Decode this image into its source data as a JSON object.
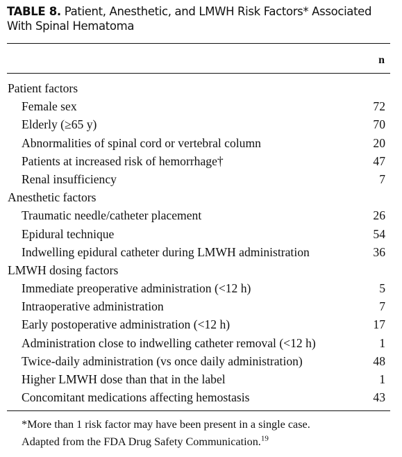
{
  "table": {
    "label": "TABLE 8.",
    "title": "Patient, Anesthetic, and LMWH Risk Factors* Associated With Spinal Hematoma",
    "column_header": "n",
    "rows": [
      {
        "text": "Patient factors",
        "value": "",
        "section": true
      },
      {
        "text": "Female sex",
        "value": "72",
        "section": false
      },
      {
        "text": "Elderly (≥65 y)",
        "value": "70",
        "section": false
      },
      {
        "text": "Abnormalities of spinal cord or vertebral column",
        "value": "20",
        "section": false
      },
      {
        "text": "Patients at increased risk of hemorrhage†",
        "value": "47",
        "section": false
      },
      {
        "text": "Renal insufficiency",
        "value": "7",
        "section": false
      },
      {
        "text": "Anesthetic factors",
        "value": "",
        "section": true
      },
      {
        "text": "Traumatic needle/catheter placement",
        "value": "26",
        "section": false
      },
      {
        "text": "Epidural technique",
        "value": "54",
        "section": false
      },
      {
        "text": "Indwelling epidural catheter during LMWH administration",
        "value": "36",
        "section": false
      },
      {
        "text": "LMWH dosing factors",
        "value": "",
        "section": true
      },
      {
        "text": "Immediate preoperative administration (<12 h)",
        "value": "5",
        "section": false
      },
      {
        "text": "Intraoperative administration",
        "value": "7",
        "section": false
      },
      {
        "text": "Early postoperative administration (<12 h)",
        "value": "17",
        "section": false
      },
      {
        "text": "Administration close to indwelling catheter removal (<12 h)",
        "value": "1",
        "section": false
      },
      {
        "text": "Twice-daily administration (vs once daily administration)",
        "value": "48",
        "section": false
      },
      {
        "text": "Higher LMWH dose than that in the label",
        "value": "1",
        "section": false
      },
      {
        "text": "Concomitant medications affecting hemostasis",
        "value": "43",
        "section": false
      }
    ],
    "footnotes": {
      "line1": "*More than 1 risk factor may have been present in a single case.",
      "line2": "Adapted from the FDA Drug Safety Communication.",
      "line2_ref": "19"
    }
  }
}
